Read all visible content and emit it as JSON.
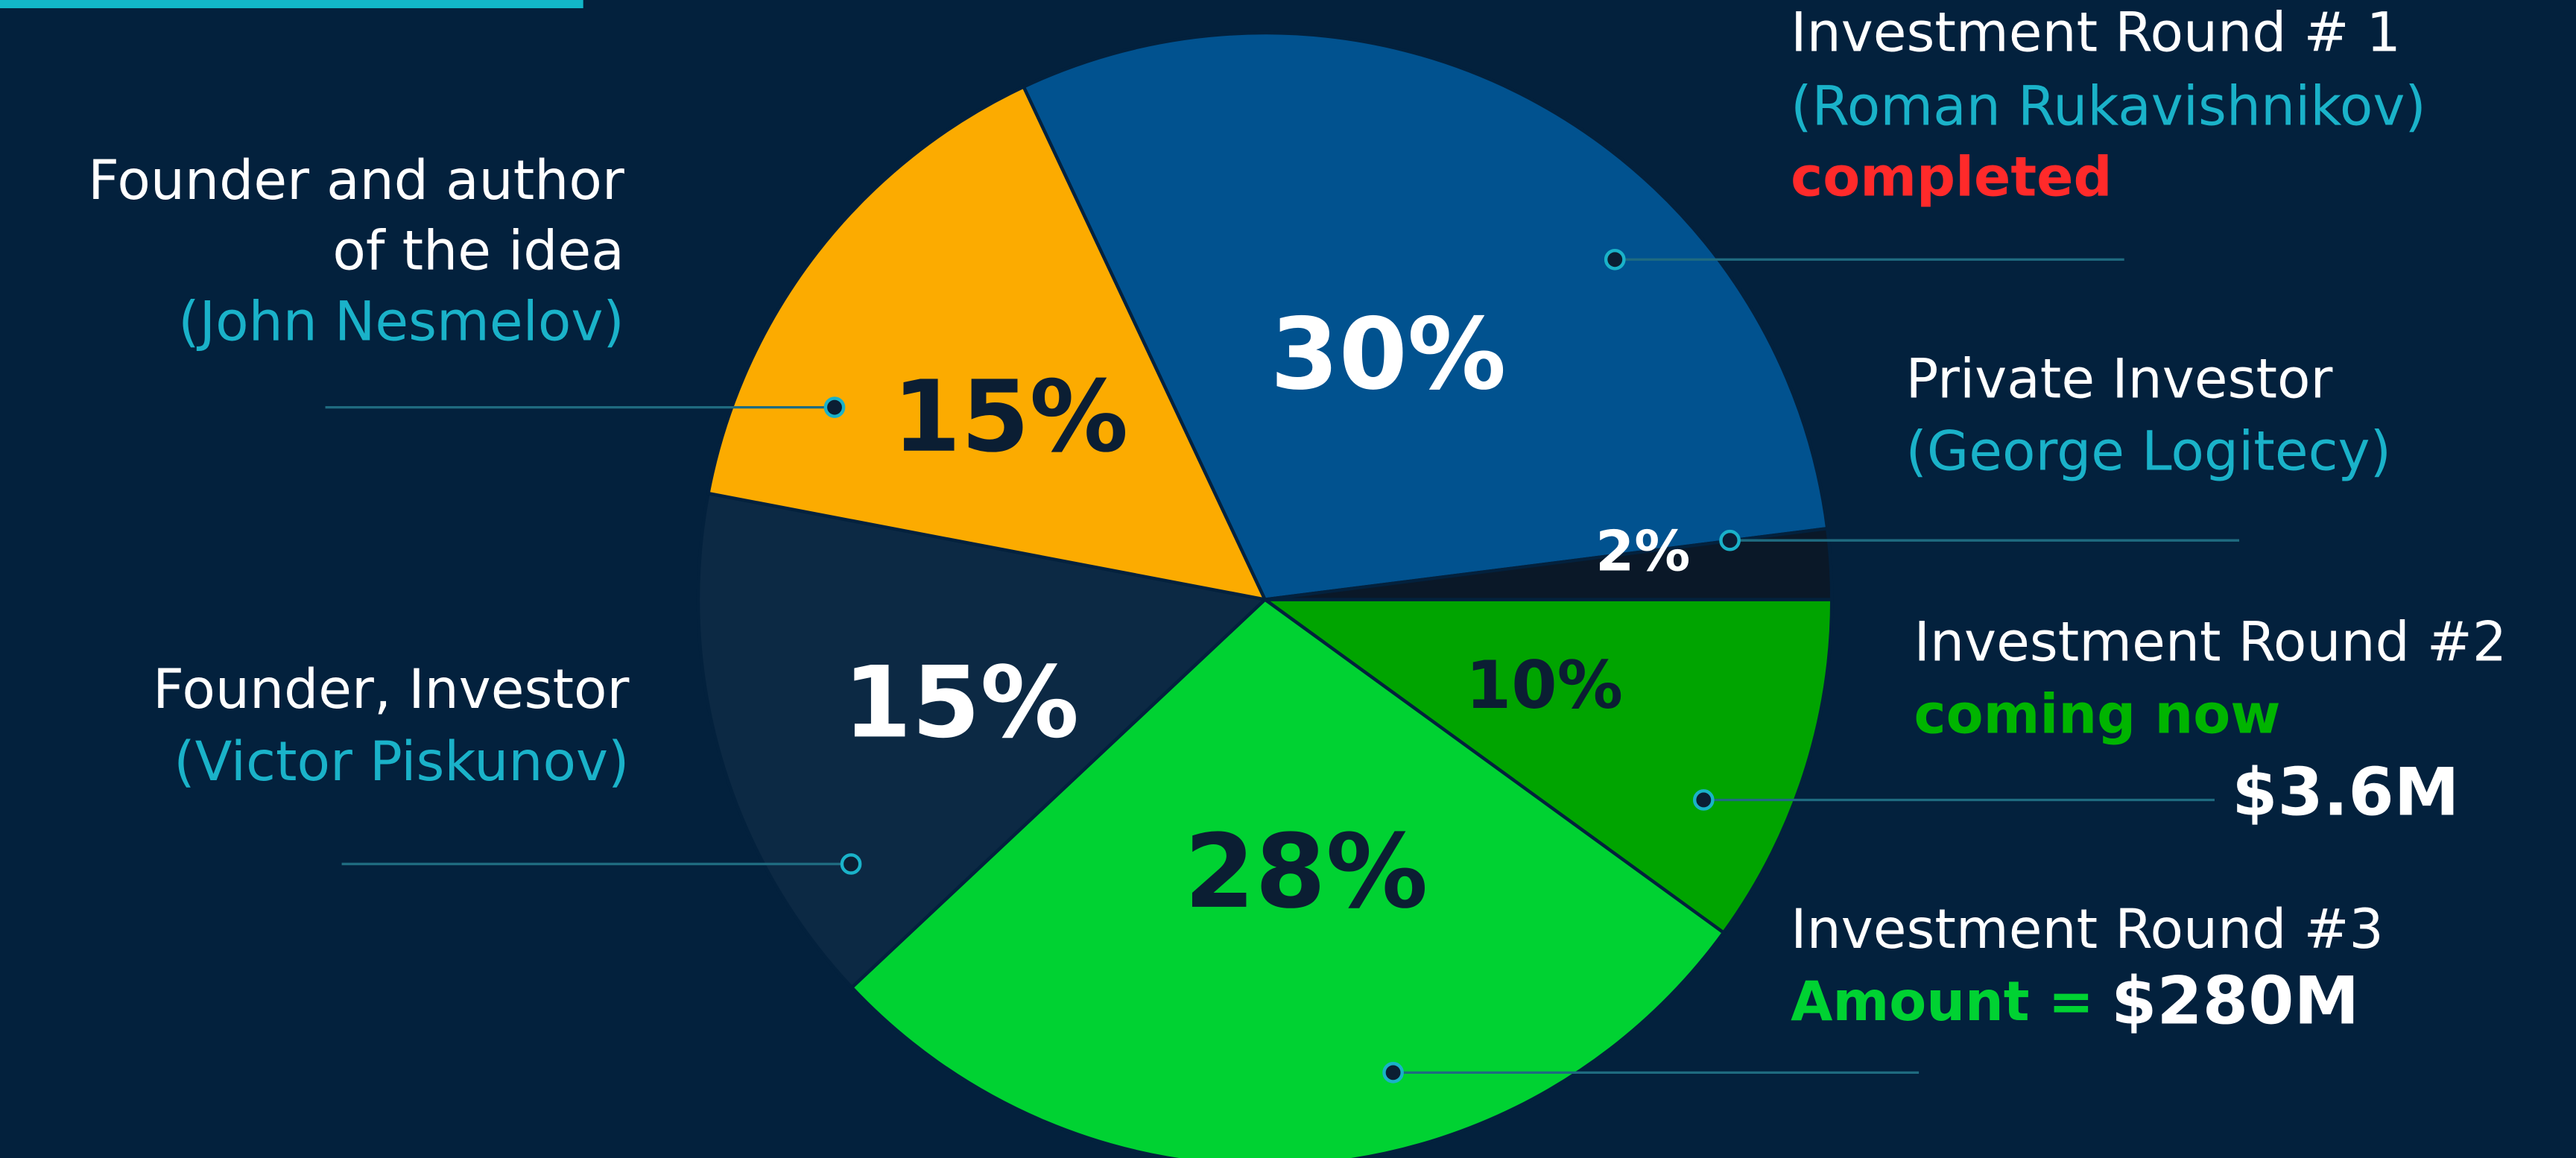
{
  "chart_data": {
    "type": "pie",
    "values": [
      10,
      28,
      15,
      15,
      30,
      2
    ],
    "value_labels": [
      "10%",
      "28%",
      "15%",
      "15%",
      "30%",
      "2%"
    ],
    "colors": [
      "#00a400",
      "#00d232",
      "#0c2944",
      "#fcab00",
      "#01528f",
      "#0a1828"
    ],
    "labels": [
      {
        "lines": [
          "Investment Round #2"
        ],
        "status": "coming now",
        "status_color": "#00b400",
        "amount": "$3.6M"
      },
      {
        "lines": [
          "Investment Round #3"
        ],
        "amount_label": "Amount =",
        "amount": "$280M"
      },
      {
        "lines": [
          "Founder, Investor"
        ],
        "person": "(Victor Piskunov)"
      },
      {
        "lines": [
          "Founder and author",
          "of the idea"
        ],
        "person": "(John Nesmelov)"
      },
      {
        "lines": [
          "Investment Round # 1"
        ],
        "person": "(Roman Rukavishnikov)",
        "status": "completed",
        "status_color": "#ff2a2a"
      },
      {
        "lines": [
          "Private Investor"
        ],
        "person": "(George Logitecy)"
      }
    ]
  }
}
